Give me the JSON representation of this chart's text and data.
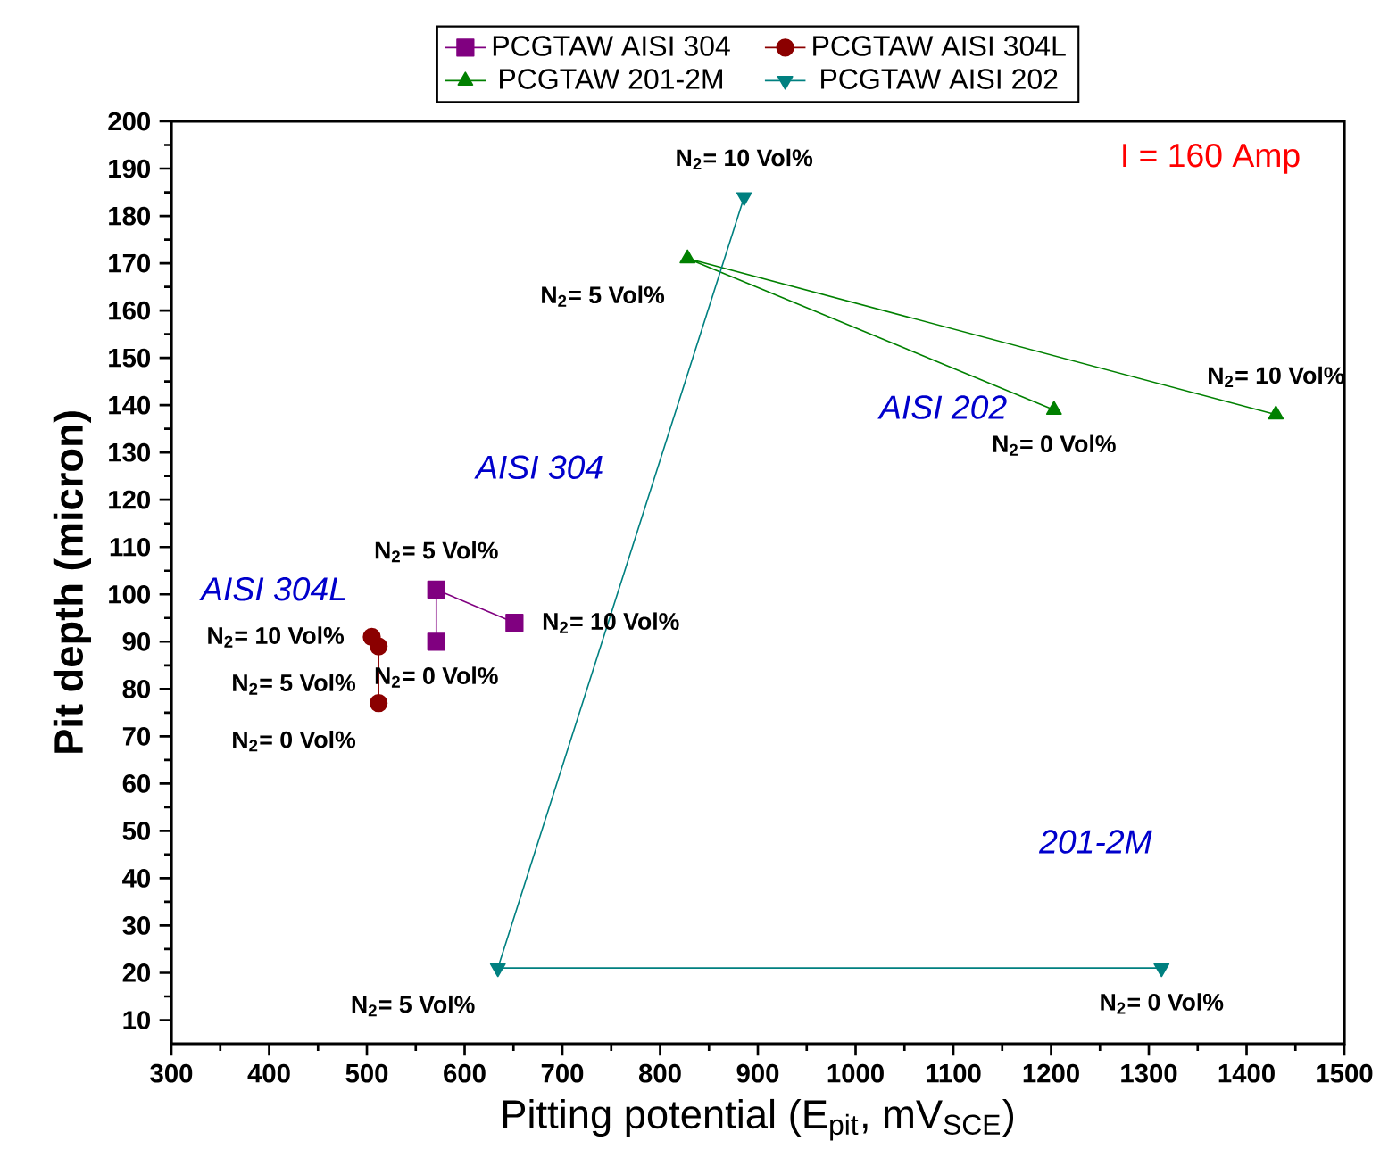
{
  "chart_data": {
    "type": "line",
    "xlabel": "Pitting potential (E$_{pit}$, mV$_{SCE}$)",
    "ylabel": "Pit depth (micron)",
    "xlim": [
      300,
      1500
    ],
    "ylim": [
      5,
      200
    ],
    "xticks": [
      300,
      400,
      500,
      600,
      700,
      800,
      900,
      1000,
      1100,
      1200,
      1300,
      1400,
      1500
    ],
    "yticks": [
      10,
      20,
      30,
      40,
      50,
      60,
      70,
      80,
      90,
      100,
      110,
      120,
      130,
      140,
      150,
      160,
      170,
      180,
      190,
      200
    ],
    "legend": "top",
    "grid": false,
    "series": [
      {
        "name": "PCGTAW AISI 304",
        "color": "#800080",
        "marker": "square",
        "x": [
          571,
          571,
          651
        ],
        "values": [
          90,
          101,
          94
        ]
      },
      {
        "name": "PCGTAW AISI 304L",
        "color": "#8b0000",
        "marker": "circle",
        "x": [
          512,
          512,
          505
        ],
        "values": [
          77,
          89,
          91
        ]
      },
      {
        "name": "PCGTAW 201-2M",
        "color": "#008000",
        "marker": "triangle",
        "x": [
          1203,
          828,
          1430
        ],
        "values": [
          139,
          171,
          138
        ]
      },
      {
        "name": "PCGTAW AISI 202",
        "color": "#008080",
        "marker": "triangle down",
        "x": [
          1313,
          634,
          886
        ],
        "values": [
          21,
          21,
          184
        ]
      }
    ],
    "annotations": [
      "I = 160 Amp",
      {
        "text": "N$_{2}$= 0 Vol%",
        "x": 571,
        "y": 90
      },
      {
        "text": "N$_{2}$= 5 Vol%",
        "x": 571,
        "y": 101
      },
      {
        "text": "N$_{2}$= 10 Vol%",
        "x": 651,
        "y": 94
      },
      {
        "text": "N$_{2}$= 0 Vol%",
        "x": 512,
        "y": 77
      },
      {
        "text": "N$_{2}$= 5 Vol%",
        "x": 512,
        "y": 89
      },
      {
        "text": "N$_{2}$= 10 Vol%",
        "x": 505,
        "y": 91
      },
      {
        "text": "N$_{2}$= 0 Vol%",
        "x": 1203,
        "y": 139
      },
      {
        "text": "N$_{2}$= 5 Vol%",
        "x": 828,
        "y": 171
      },
      {
        "text": "N$_{2}$= 10 Vol%",
        "x": 1430,
        "y": 138
      },
      {
        "text": "N$_{2}$= 0 Vol%",
        "x": 1313,
        "y": 21
      },
      {
        "text": "N$_{2}$= 5 Vol%",
        "x": 634,
        "y": 21
      },
      {
        "text": "N$_{2}$= 10 Vol%",
        "x": 886,
        "y": 184
      },
      "AISI 304L",
      "AISI 304",
      "AISI 202",
      "201-2M"
    ]
  }
}
